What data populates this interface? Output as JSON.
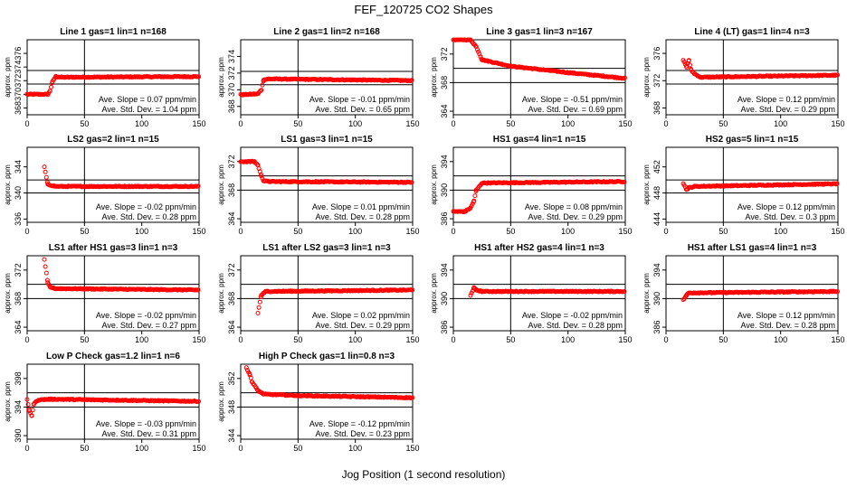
{
  "title": "FEF_120725  CO2 Shapes",
  "xlabel": "Jog Position (1 second resolution)",
  "chart_data": [
    {
      "type": "scatter",
      "title": "Line 1 gas=1 lin=1 n=168",
      "ylabel": "approx. ppm",
      "xlim": [
        0,
        150
      ],
      "ylim": [
        367,
        378
      ],
      "yticks": [
        368,
        370,
        372,
        374,
        376
      ],
      "xticks": [
        0,
        50,
        100,
        150
      ],
      "hlines": [
        371.5,
        373.5
      ],
      "vline": 50,
      "slope": "Ave. Slope = 0.07  ppm/min",
      "std": "Ave. Std. Dev. = 1.04  ppm",
      "color": "#ff0000",
      "series": [
        {
          "x": [
            0,
            18,
            20,
            22,
            25,
            30,
            150
          ],
          "y": [
            370,
            370,
            370.5,
            371.8,
            372.6,
            372.5,
            372.6
          ]
        }
      ]
    },
    {
      "type": "scatter",
      "title": "Line 2 gas=1 lin=2 n=168",
      "ylabel": "approx. ppm",
      "xlim": [
        0,
        150
      ],
      "ylim": [
        367,
        376
      ],
      "yticks": [
        368,
        370,
        372,
        374
      ],
      "xticks": [
        0,
        50,
        100,
        150
      ],
      "hlines": [
        370.6,
        372.2
      ],
      "vline": 50,
      "slope": "Ave. Slope = -0.01  ppm/min",
      "std": "Ave. Std. Dev. = 0.65  ppm",
      "color": "#ff0000",
      "series": [
        {
          "x": [
            0,
            15,
            18,
            20,
            25,
            150
          ],
          "y": [
            369.4,
            369.5,
            370,
            371.2,
            371.3,
            371.1
          ]
        }
      ]
    },
    {
      "type": "scatter",
      "title": "Line 3 gas=1 lin=3 n=167",
      "ylabel": "approx. ppm",
      "xlim": [
        0,
        150
      ],
      "ylim": [
        363.5,
        374
      ],
      "yticks": [
        364,
        368,
        372
      ],
      "xticks": [
        0,
        50,
        100,
        150
      ],
      "hlines": [
        368,
        370
      ],
      "vline": 50,
      "slope": "Ave. Slope = -0.51  ppm/min",
      "std": "Ave. Std. Dev. = 0.69  ppm",
      "color": "#ff0000",
      "series": [
        {
          "x": [
            0,
            15,
            20,
            25,
            50,
            100,
            150
          ],
          "y": [
            374,
            374,
            373,
            371.2,
            370.3,
            369.4,
            368.6
          ]
        }
      ]
    },
    {
      "type": "scatter",
      "title": "Line 4 (LT) gas=1 lin=4 n=3",
      "ylabel": "approx. ppm",
      "xlim": [
        0,
        150
      ],
      "ylim": [
        367,
        378
      ],
      "yticks": [
        368,
        372,
        376
      ],
      "xticks": [
        0,
        50,
        100,
        150
      ],
      "hlines": [
        371.5,
        373.5
      ],
      "vline": 50,
      "slope": "Ave. Slope = 0.12  ppm/min",
      "std": "Ave. Std. Dev. = 0.29  ppm",
      "color": "#ff0000",
      "series": [
        {
          "x": [
            15,
            18,
            20,
            22,
            25,
            30,
            150
          ],
          "y": [
            375,
            374,
            375,
            373.5,
            373,
            372.5,
            372.8
          ]
        }
      ]
    },
    {
      "type": "scatter",
      "title": "LS2 gas=2 lin=1 n=15",
      "ylabel": "approx. ppm",
      "xlim": [
        0,
        150
      ],
      "ylim": [
        335.5,
        347
      ],
      "yticks": [
        336,
        340,
        344
      ],
      "xticks": [
        0,
        50,
        100,
        150
      ],
      "hlines": [
        340,
        342
      ],
      "vline": 50,
      "slope": "Ave. Slope = -0.02  ppm/min",
      "std": "Ave. Std. Dev. = 0.28  ppm",
      "color": "#ff0000",
      "series": [
        {
          "x": [
            15,
            18,
            25,
            150
          ],
          "y": [
            344,
            341.3,
            341,
            341
          ]
        }
      ]
    },
    {
      "type": "scatter",
      "title": "LS1 gas=3 lin=1 n=15",
      "ylabel": "approx. ppm",
      "xlim": [
        0,
        150
      ],
      "ylim": [
        363.5,
        374
      ],
      "yticks": [
        364,
        368,
        372
      ],
      "xticks": [
        0,
        50,
        100,
        150
      ],
      "hlines": [
        368,
        370
      ],
      "vline": 50,
      "slope": "Ave. Slope = 0.01  ppm/min",
      "std": "Ave. Std. Dev. = 0.28  ppm",
      "color": "#ff0000",
      "series": [
        {
          "x": [
            0,
            12,
            15,
            18,
            20,
            25,
            150
          ],
          "y": [
            372,
            372,
            371.5,
            370,
            369.3,
            369.2,
            369.1
          ]
        }
      ]
    },
    {
      "type": "scatter",
      "title": "HS1 gas=4 lin=1 n=15",
      "ylabel": "approx. ppm",
      "xlim": [
        0,
        150
      ],
      "ylim": [
        385.5,
        396
      ],
      "yticks": [
        386,
        390,
        394
      ],
      "xticks": [
        0,
        50,
        100,
        150
      ],
      "hlines": [
        390,
        392
      ],
      "vline": 50,
      "slope": "Ave. Slope = 0.08  ppm/min",
      "std": "Ave. Std. Dev. = 0.29  ppm",
      "color": "#ff0000",
      "series": [
        {
          "x": [
            0,
            10,
            15,
            18,
            20,
            25,
            150
          ],
          "y": [
            387,
            387,
            387.5,
            388.5,
            390,
            391,
            391.2
          ]
        }
      ]
    },
    {
      "type": "scatter",
      "title": "HS2 gas=5 lin=1 n=15",
      "ylabel": "approx. ppm",
      "xlim": [
        0,
        150
      ],
      "ylim": [
        443.5,
        455
      ],
      "yticks": [
        444,
        448,
        452
      ],
      "xticks": [
        0,
        50,
        100,
        150
      ],
      "hlines": [
        448,
        450
      ],
      "vline": 50,
      "slope": "Ave. Slope = 0.12  ppm/min",
      "std": "Ave. Std. Dev. = 0.3  ppm",
      "color": "#ff0000",
      "series": [
        {
          "x": [
            15,
            18,
            20,
            25,
            150
          ],
          "y": [
            449.5,
            448.5,
            448.8,
            449,
            449.4
          ]
        }
      ]
    },
    {
      "type": "scatter",
      "title": "LS1 after HS1 gas=3 lin=1 n=3",
      "ylabel": "approx. ppm",
      "xlim": [
        0,
        150
      ],
      "ylim": [
        363.5,
        374
      ],
      "yticks": [
        364,
        368,
        372
      ],
      "xticks": [
        0,
        50,
        100,
        150
      ],
      "hlines": [
        368,
        370
      ],
      "vline": 50,
      "slope": "Ave. Slope = -0.02  ppm/min",
      "std": "Ave. Std. Dev. = 0.27  ppm",
      "color": "#ff0000",
      "series": [
        {
          "x": [
            15,
            18,
            20,
            25,
            150
          ],
          "y": [
            373.5,
            370.2,
            369.6,
            369.4,
            369.2
          ]
        }
      ]
    },
    {
      "type": "scatter",
      "title": "LS1 after LS2 gas=3 lin=1 n=3",
      "ylabel": "approx. ppm",
      "xlim": [
        0,
        150
      ],
      "ylim": [
        363.5,
        374
      ],
      "yticks": [
        364,
        368,
        372
      ],
      "xticks": [
        0,
        50,
        100,
        150
      ],
      "hlines": [
        368,
        370
      ],
      "vline": 50,
      "slope": "Ave. Slope = 0.02  ppm/min",
      "std": "Ave. Std. Dev. = 0.29  ppm",
      "color": "#ff0000",
      "series": [
        {
          "x": [
            15,
            18,
            22,
            150
          ],
          "y": [
            366,
            368.5,
            369,
            369.2
          ]
        }
      ]
    },
    {
      "type": "scatter",
      "title": "HS1 after HS2 gas=4 lin=1 n=3",
      "ylabel": "approx. ppm",
      "xlim": [
        0,
        150
      ],
      "ylim": [
        385.5,
        396
      ],
      "yticks": [
        386,
        390,
        394
      ],
      "xticks": [
        0,
        50,
        100,
        150
      ],
      "hlines": [
        390,
        392
      ],
      "vline": 50,
      "slope": "Ave. Slope = -0.02  ppm/min",
      "std": "Ave. Std. Dev. = 0.28  ppm",
      "color": "#ff0000",
      "series": [
        {
          "x": [
            15,
            18,
            20,
            25,
            150
          ],
          "y": [
            390.5,
            391.5,
            391.2,
            391,
            391
          ]
        }
      ]
    },
    {
      "type": "scatter",
      "title": "HS1 after LS1 gas=4 lin=1 n=3",
      "ylabel": "approx. ppm",
      "xlim": [
        0,
        150
      ],
      "ylim": [
        385.5,
        396
      ],
      "yticks": [
        386,
        390,
        394
      ],
      "xticks": [
        0,
        50,
        100,
        150
      ],
      "hlines": [
        390,
        392
      ],
      "vline": 50,
      "slope": "Ave. Slope = 0.12  ppm/min",
      "std": "Ave. Std. Dev. = 0.28  ppm",
      "color": "#ff0000",
      "series": [
        {
          "x": [
            15,
            18,
            20,
            150
          ],
          "y": [
            389.8,
            390.5,
            390.8,
            391
          ]
        }
      ]
    },
    {
      "type": "scatter",
      "title": "Low P Check gas=1.2 lin=1 n=6",
      "ylabel": "approx. ppm",
      "xlim": [
        0,
        150
      ],
      "ylim": [
        389.5,
        400
      ],
      "yticks": [
        390,
        394,
        398
      ],
      "xticks": [
        0,
        50,
        100,
        150
      ],
      "hlines": [
        394,
        396
      ],
      "vline": 50,
      "slope": "Ave. Slope = -0.03  ppm/min",
      "std": "Ave. Std. Dev. = 0.31  ppm",
      "color": "#ff0000",
      "series": [
        {
          "x": [
            0,
            2,
            4,
            6,
            10,
            20,
            150
          ],
          "y": [
            395,
            393.5,
            392.8,
            394.5,
            395,
            395.1,
            394.8
          ]
        }
      ]
    },
    {
      "type": "scatter",
      "title": "High P Check gas=1 lin=0.8 n=3",
      "ylabel": "approx. ppm",
      "xlim": [
        0,
        150
      ],
      "ylim": [
        343.5,
        354
      ],
      "yticks": [
        344,
        348,
        352
      ],
      "xticks": [
        0,
        50,
        100,
        150
      ],
      "hlines": [
        348,
        350
      ],
      "vline": 50,
      "slope": "Ave. Slope = -0.12  ppm/min",
      "std": "Ave. Std. Dev. = 0.23  ppm",
      "color": "#ff0000",
      "series": [
        {
          "x": [
            5,
            8,
            10,
            15,
            20,
            50,
            150
          ],
          "y": [
            353.5,
            352.5,
            351.5,
            350.3,
            349.8,
            349.6,
            349.3
          ]
        }
      ]
    }
  ]
}
